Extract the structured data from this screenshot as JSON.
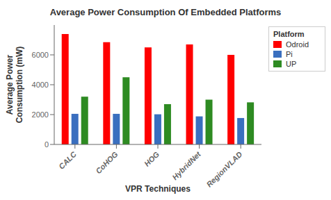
{
  "chart_data": {
    "type": "bar",
    "title": "Average Power Consumption Of Embedded Platforms",
    "x_label": "VPR Techniques",
    "y_label": "Average Power\nConsumption (mW)",
    "categories": [
      "CALC",
      "CoHOG",
      "HOG",
      "HybridNet",
      "RegionVLAD"
    ],
    "series": [
      {
        "name": "Odroid",
        "color": "#FF0000",
        "values": [
          7400,
          6850,
          6500,
          6700,
          6000
        ]
      },
      {
        "name": "Pi",
        "color": "#3A6FBF",
        "values": [
          2050,
          2050,
          2020,
          1880,
          1770
        ]
      },
      {
        "name": "UP",
        "color": "#2E8B22",
        "values": [
          3200,
          4500,
          2700,
          3000,
          2820
        ]
      }
    ],
    "ylim": [
      0,
      8000
    ],
    "yticks": [
      0,
      2000,
      4000,
      6000
    ],
    "legend_title": "Platform",
    "legend": "upper right",
    "grid": false
  }
}
